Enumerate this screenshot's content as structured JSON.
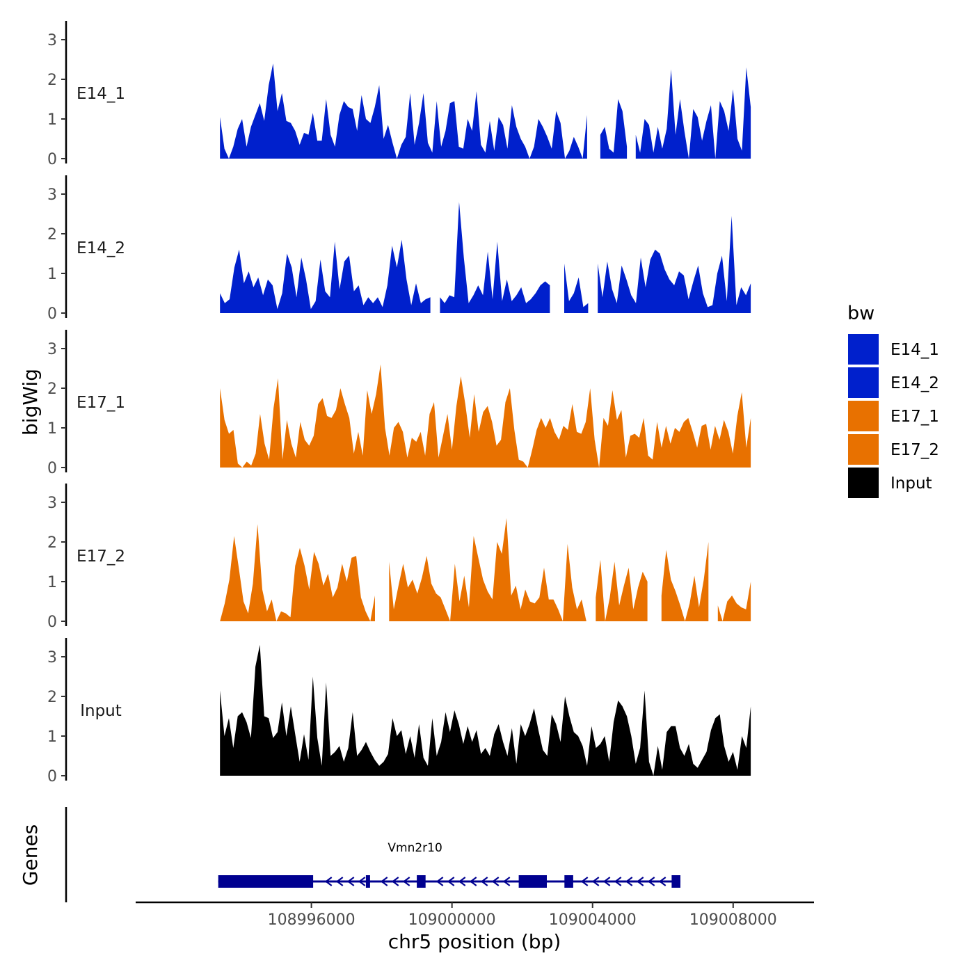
{
  "chart_data": {
    "type": "area",
    "xlabel": "chr5 position (bp)",
    "ylabel": "bigWig",
    "genes_label": "Genes",
    "xlim": [
      108991000,
      109010300
    ],
    "x_ticks": [
      108996000,
      109000000,
      109004000,
      109008000
    ],
    "x_tick_labels": [
      "108996000",
      "109000000",
      "109004000",
      "109008000"
    ],
    "ylim": [
      0,
      3.4
    ],
    "y_ticks": [
      0,
      1,
      2,
      3
    ],
    "y_tick_labels": [
      "0",
      "1",
      "2",
      "3"
    ],
    "legend": {
      "title": "bw",
      "position": "right",
      "entries": [
        {
          "label": "E14_1",
          "color": "#0020CC"
        },
        {
          "label": "E14_2",
          "color": "#0020CC"
        },
        {
          "label": "E17_1",
          "color": "#E87100"
        },
        {
          "label": "E17_2",
          "color": "#E87100"
        },
        {
          "label": "Input",
          "color": "#000000"
        }
      ]
    },
    "tracks": [
      {
        "name": "E14_1",
        "color": "#0020CC",
        "x_start": 108993400,
        "x_end": 109008500,
        "values": [
          1.05,
          0.25,
          0.0,
          0.3,
          0.75,
          1.0,
          0.3,
          0.8,
          1.1,
          1.4,
          0.95,
          1.85,
          2.4,
          1.2,
          1.65,
          0.95,
          0.9,
          0.7,
          0.35,
          0.65,
          0.6,
          1.15,
          0.45,
          0.45,
          1.5,
          0.6,
          0.3,
          1.1,
          1.45,
          1.3,
          1.25,
          0.7,
          1.6,
          1.0,
          0.9,
          1.3,
          1.85,
          0.5,
          0.85,
          0.4,
          0.0,
          0.35,
          0.55,
          1.65,
          0.35,
          0.9,
          1.65,
          0.4,
          0.15,
          1.45,
          0.3,
          0.7,
          1.4,
          1.45,
          0.3,
          0.25,
          1.0,
          0.7,
          1.7,
          0.35,
          0.15,
          0.95,
          0.2,
          1.05,
          0.85,
          0.25,
          1.35,
          0.8,
          0.5,
          0.3,
          0.0,
          0.3,
          1.0,
          0.8,
          0.55,
          0.25,
          1.2,
          0.9,
          0.0,
          0.2,
          0.55,
          0.3,
          0.0,
          1.1,
          1.4,
          0.5,
          0.6,
          0.8,
          0.25,
          0.15,
          1.5,
          1.2,
          0.3,
          0.1,
          0.6,
          0.15,
          1.0,
          0.85,
          0.15,
          0.8,
          0.25,
          0.75,
          2.25,
          0.6,
          1.5,
          0.7,
          0.0,
          1.25,
          1.05,
          0.45,
          0.95,
          1.35,
          0.0,
          1.45,
          1.2,
          0.7,
          1.75,
          0.5,
          0.2,
          2.3,
          1.3
        ],
        "gaps": [
          [
            109003860,
            109004200
          ],
          [
            109005050,
            109005180
          ],
          [
            109006150,
            109006200
          ]
        ]
      },
      {
        "name": "E14_2",
        "color": "#0020CC",
        "x_start": 108993400,
        "x_end": 109008500,
        "values": [
          0.5,
          0.25,
          0.35,
          1.15,
          1.6,
          0.75,
          1.05,
          0.65,
          0.9,
          0.45,
          0.85,
          0.7,
          0.1,
          0.5,
          1.5,
          1.15,
          0.4,
          1.4,
          0.85,
          0.1,
          0.3,
          1.35,
          0.55,
          0.4,
          1.8,
          0.6,
          1.3,
          1.45,
          0.55,
          0.7,
          0.2,
          0.4,
          0.25,
          0.4,
          0.15,
          0.7,
          1.7,
          1.15,
          1.85,
          0.85,
          0.2,
          0.75,
          0.25,
          0.35,
          0.4,
          0.0,
          0.4,
          0.25,
          0.45,
          0.4,
          2.8,
          1.4,
          0.25,
          0.45,
          0.7,
          0.45,
          1.55,
          0.35,
          1.8,
          0.3,
          0.85,
          0.3,
          0.45,
          0.65,
          0.25,
          0.35,
          0.5,
          0.7,
          0.8,
          0.7,
          0.5,
          0.05,
          1.25,
          0.3,
          0.5,
          0.9,
          0.15,
          0.25,
          0.95,
          1.25,
          0.4,
          1.3,
          0.6,
          0.25,
          1.2,
          0.85,
          0.45,
          0.25,
          1.4,
          0.65,
          1.35,
          1.6,
          1.5,
          1.1,
          0.85,
          0.7,
          1.05,
          0.95,
          0.35,
          0.8,
          1.2,
          0.5,
          0.15,
          0.2,
          1.0,
          1.45,
          0.3,
          2.45,
          0.2,
          0.65,
          0.45,
          0.75
        ],
        "gaps": [
          [
            108999500,
            108999600
          ],
          [
            109002900,
            109003100
          ],
          [
            109004000,
            109004100
          ]
        ]
      },
      {
        "name": "E17_1",
        "color": "#E87100",
        "x_start": 108993400,
        "x_end": 109008500,
        "values": [
          2.0,
          1.2,
          0.85,
          0.95,
          0.1,
          0.0,
          0.15,
          0.05,
          0.35,
          1.35,
          0.6,
          0.2,
          1.5,
          2.25,
          0.2,
          1.2,
          0.6,
          0.25,
          1.15,
          0.7,
          0.55,
          0.8,
          1.6,
          1.75,
          1.3,
          1.25,
          1.45,
          2.0,
          1.6,
          1.25,
          0.35,
          0.9,
          0.3,
          1.95,
          1.35,
          1.85,
          2.6,
          1.0,
          0.3,
          1.0,
          1.15,
          0.9,
          0.25,
          0.75,
          0.65,
          0.9,
          0.3,
          1.35,
          1.65,
          0.25,
          0.8,
          1.35,
          0.45,
          1.55,
          2.3,
          1.6,
          0.75,
          1.85,
          0.9,
          1.4,
          1.55,
          1.15,
          0.55,
          0.7,
          1.65,
          2.0,
          0.95,
          0.2,
          0.15,
          0.0,
          0.45,
          0.95,
          1.25,
          1.0,
          1.25,
          0.9,
          0.7,
          1.05,
          0.95,
          1.6,
          0.9,
          0.85,
          1.15,
          2.0,
          0.7,
          0.0,
          1.25,
          1.05,
          1.95,
          1.2,
          1.45,
          0.25,
          0.8,
          0.85,
          0.75,
          1.25,
          0.3,
          0.2,
          1.15,
          0.5,
          1.05,
          0.6,
          1.0,
          0.9,
          1.15,
          1.25,
          0.9,
          0.5,
          1.05,
          1.1,
          0.45,
          1.05,
          0.7,
          1.2,
          0.9,
          0.35,
          1.3,
          1.9,
          0.5,
          1.25
        ],
        "gaps": []
      },
      {
        "name": "E17_2",
        "color": "#E87100",
        "x_start": 108993400,
        "x_end": 109008500,
        "values": [
          0.0,
          0.45,
          1.05,
          2.15,
          1.35,
          0.5,
          0.2,
          0.95,
          2.45,
          0.8,
          0.25,
          0.55,
          0.0,
          0.25,
          0.2,
          0.1,
          1.4,
          1.85,
          1.4,
          0.8,
          1.75,
          1.45,
          0.9,
          1.2,
          0.6,
          0.85,
          1.45,
          1.0,
          1.6,
          1.65,
          0.6,
          0.25,
          0.0,
          0.65,
          0.4,
          0.45,
          1.5,
          0.3,
          0.9,
          1.45,
          0.85,
          1.05,
          0.7,
          1.1,
          1.65,
          0.95,
          0.7,
          0.6,
          0.3,
          0.0,
          1.45,
          0.5,
          1.15,
          0.35,
          2.15,
          1.6,
          1.05,
          0.75,
          0.55,
          2.0,
          1.7,
          2.6,
          0.65,
          0.9,
          0.3,
          0.8,
          0.5,
          0.45,
          0.6,
          1.35,
          0.55,
          0.55,
          0.3,
          0.0,
          1.95,
          0.85,
          0.3,
          0.55,
          0.0,
          0.15,
          0.6,
          1.55,
          0.0,
          0.6,
          1.5,
          0.4,
          0.9,
          1.35,
          0.3,
          0.85,
          1.25,
          1.0,
          0.45,
          0.0,
          0.65,
          1.8,
          1.05,
          0.75,
          0.4,
          0.0,
          0.45,
          1.15,
          0.35,
          1.05,
          2.0,
          1.2,
          0.4,
          0.0,
          0.5,
          0.65,
          0.45,
          0.35,
          0.3,
          1.0
        ],
        "gaps": [
          [
            108997900,
            108998150
          ],
          [
            109003950,
            109004050
          ],
          [
            109005600,
            109005900
          ],
          [
            109007350,
            109007500
          ]
        ]
      },
      {
        "name": "Input",
        "color": "#000000",
        "x_start": 108993400,
        "x_end": 109008500,
        "values": [
          2.15,
          1.0,
          1.45,
          0.7,
          1.5,
          1.6,
          1.35,
          0.95,
          2.75,
          3.3,
          1.5,
          1.45,
          0.95,
          1.1,
          1.85,
          1.0,
          1.75,
          1.05,
          0.35,
          1.05,
          0.4,
          2.5,
          0.95,
          0.25,
          2.35,
          0.5,
          0.6,
          0.75,
          0.35,
          0.7,
          1.6,
          0.5,
          0.65,
          0.85,
          0.6,
          0.4,
          0.25,
          0.35,
          0.55,
          1.45,
          1.0,
          1.15,
          0.55,
          1.0,
          0.45,
          1.3,
          0.45,
          0.25,
          1.45,
          0.5,
          0.85,
          1.6,
          1.1,
          1.65,
          1.3,
          0.8,
          1.25,
          0.85,
          1.15,
          0.55,
          0.7,
          0.5,
          1.05,
          1.3,
          0.85,
          0.5,
          1.2,
          0.3,
          1.3,
          1.0,
          1.3,
          1.7,
          1.15,
          0.65,
          0.5,
          1.55,
          1.3,
          0.85,
          2.0,
          1.5,
          1.1,
          1.0,
          0.75,
          0.25,
          1.25,
          0.7,
          0.8,
          1.0,
          0.35,
          1.35,
          1.9,
          1.75,
          1.5,
          1.0,
          0.3,
          0.7,
          2.15,
          0.35,
          0.0,
          0.75,
          0.15,
          1.1,
          1.25,
          1.25,
          0.7,
          0.5,
          0.8,
          0.3,
          0.2,
          0.4,
          0.6,
          1.15,
          1.45,
          1.55,
          0.75,
          0.35,
          0.6,
          0.15,
          1.0,
          0.7,
          1.75
        ],
        "gaps": []
      }
    ],
    "gene": {
      "name": "Vmn2r10",
      "strand": "-",
      "start": 108993350,
      "end": 109006500,
      "color": "#000090",
      "exons": [
        [
          108993350,
          108996050
        ],
        [
          108997550,
          108997660
        ],
        [
          108999000,
          108999250
        ],
        [
          109001900,
          109002700
        ],
        [
          109003200,
          109003450
        ],
        [
          109006250,
          109006500
        ]
      ]
    }
  }
}
